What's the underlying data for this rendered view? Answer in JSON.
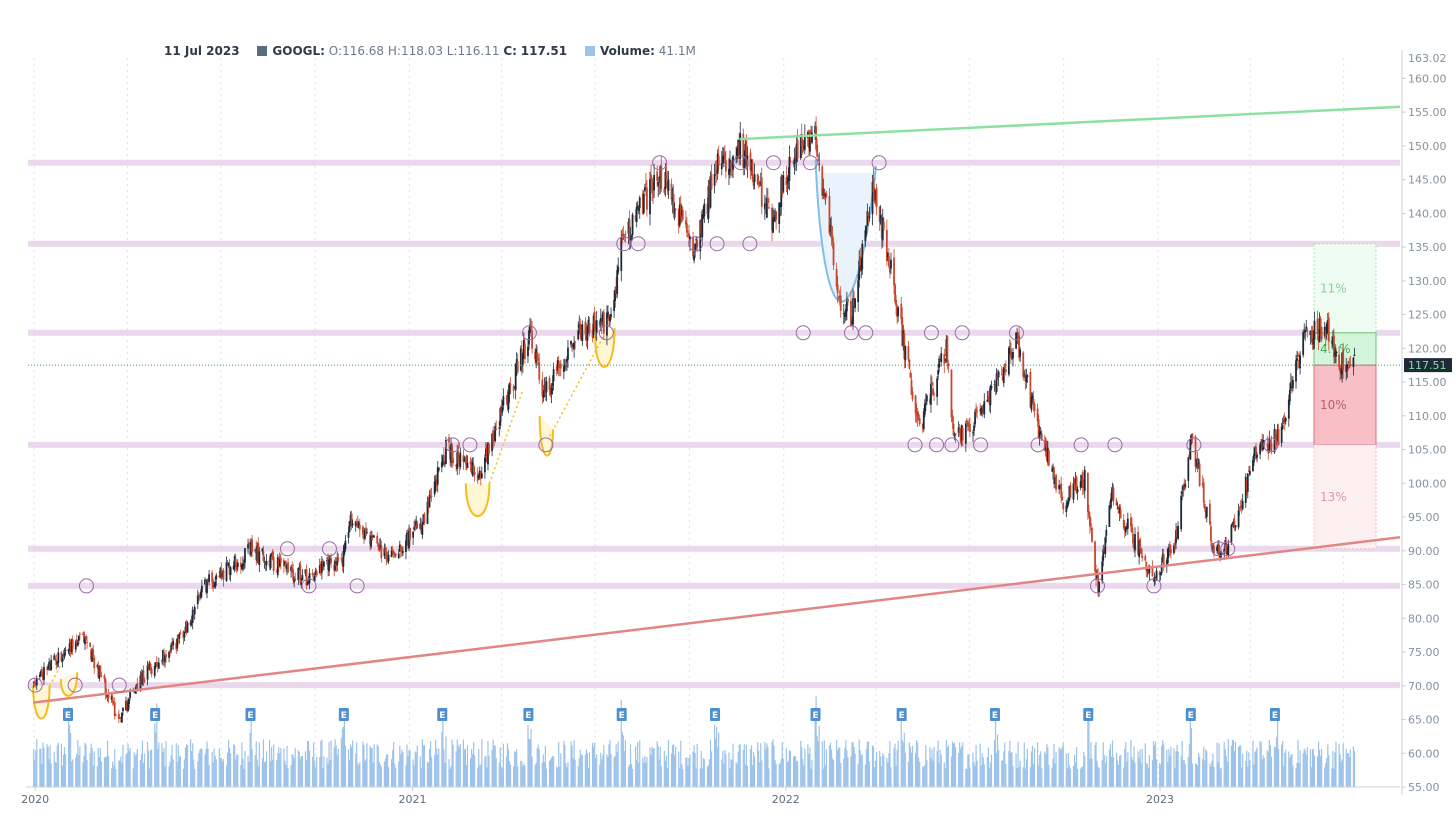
{
  "header": {
    "date": "11 Jul 2023",
    "symbol_label": "GOOGL:",
    "o_label": "O:",
    "o": "116.68",
    "h_label": "H:",
    "h": "118.03",
    "l_label": "L:",
    "l": "116.11",
    "c_label": "C:",
    "c": "117.51",
    "volume_label": "Volume:",
    "volume": "41.1M",
    "symbol_color": "#5a6a80",
    "volume_color": "#9ec3ea"
  },
  "chart_data": {
    "type": "candlestick",
    "symbol": "GOOGL",
    "x_ticks": [
      "2020",
      "2021",
      "2022",
      "2023"
    ],
    "y_ticks": [
      55,
      60,
      65,
      70,
      75,
      80,
      85,
      90,
      95,
      100,
      105,
      110,
      115,
      120,
      125,
      130,
      135,
      140,
      145,
      150,
      155,
      160
    ],
    "y_top_label": "163.02",
    "ylim": [
      55,
      163.02
    ],
    "last_price": 117.51,
    "last_price_label": "117.51",
    "price_path": [
      [
        "2019-12-31",
        70.5
      ],
      [
        "2020-02-05",
        76
      ],
      [
        "2020-02-19",
        77
      ],
      [
        "2020-03-23",
        65
      ],
      [
        "2020-04-08",
        70
      ],
      [
        "2020-05-27",
        78
      ],
      [
        "2020-06-15",
        85
      ],
      [
        "2020-07-30",
        90
      ],
      [
        "2020-09-21",
        86
      ],
      [
        "2020-10-28",
        89
      ],
      [
        "2020-11-05",
        95
      ],
      [
        "2020-12-09",
        89
      ],
      [
        "2021-01-14",
        94
      ],
      [
        "2021-02-05",
        105
      ],
      [
        "2021-03-08",
        101
      ],
      [
        "2021-04-06",
        113
      ],
      [
        "2021-04-28",
        122
      ],
      [
        "2021-05-12",
        113
      ],
      [
        "2021-06-11",
        122
      ],
      [
        "2021-07-15",
        124
      ],
      [
        "2021-07-27",
        136
      ],
      [
        "2021-09-01",
        146
      ],
      [
        "2021-10-04",
        135
      ],
      [
        "2021-10-28",
        147
      ],
      [
        "2021-11-19",
        150
      ],
      [
        "2021-12-20",
        139
      ],
      [
        "2022-01-10",
        149
      ],
      [
        "2022-02-01",
        151
      ],
      [
        "2022-02-24",
        127
      ],
      [
        "2022-03-08",
        125
      ],
      [
        "2022-03-29",
        144
      ],
      [
        "2022-04-13",
        133
      ],
      [
        "2022-05-12",
        108
      ],
      [
        "2022-06-08",
        120
      ],
      [
        "2022-06-16",
        106
      ],
      [
        "2022-07-15",
        111
      ],
      [
        "2022-08-16",
        121
      ],
      [
        "2022-09-06",
        108
      ],
      [
        "2022-09-30",
        97
      ],
      [
        "2022-10-21",
        101
      ],
      [
        "2022-11-03",
        84
      ],
      [
        "2022-11-16",
        98
      ],
      [
        "2022-12-28",
        86
      ],
      [
        "2023-01-18",
        92
      ],
      [
        "2023-02-02",
        107
      ],
      [
        "2023-02-24",
        90
      ],
      [
        "2023-03-10",
        91
      ],
      [
        "2023-04-04",
        104
      ],
      [
        "2023-04-28",
        107
      ],
      [
        "2023-05-24",
        122
      ],
      [
        "2023-06-14",
        123
      ],
      [
        "2023-06-27",
        118
      ],
      [
        "2023-07-11",
        117.51
      ]
    ],
    "volume_series": {
      "name": "Volume",
      "last": "41.1M"
    },
    "earnings_markers": {
      "label": "E",
      "dates": [
        "2020-02-03",
        "2020-04-28",
        "2020-07-30",
        "2020-10-29",
        "2021-02-02",
        "2021-04-27",
        "2021-07-27",
        "2021-10-26",
        "2022-02-01",
        "2022-04-26",
        "2022-07-26",
        "2022-10-25",
        "2023-02-02",
        "2023-04-25"
      ]
    },
    "support_resistance_levels": [
      147.5,
      135.5,
      122.3,
      105.7,
      90.3,
      84.8,
      70.1
    ],
    "trendlines": [
      {
        "color": "#8ee0a1",
        "from": [
          "2021-11-19",
          151
        ],
        "to": [
          "2023-08-25",
          155.8
        ]
      },
      {
        "color": "#e38585",
        "from": [
          "2019-12-31",
          67.5
        ],
        "to": [
          "2023-08-25",
          92
        ]
      }
    ],
    "pattern_markers": {
      "circles_yellow_cups": [
        [
          [
            "2019-12-31",
            70
          ],
          [
            "2020-01-08",
            65
          ],
          [
            "2020-01-16",
            70
          ]
        ],
        [
          [
            "2020-01-27",
            71
          ],
          [
            "2020-02-05",
            69
          ],
          [
            "2020-02-12",
            72
          ]
        ],
        [
          [
            "2021-02-25",
            100
          ],
          [
            "2021-03-10",
            95
          ],
          [
            "2021-03-20",
            100
          ]
        ],
        [
          [
            "2021-05-08",
            110
          ],
          [
            "2021-05-14",
            104
          ],
          [
            "2021-05-21",
            108
          ]
        ],
        [
          [
            "2021-07-01",
            122
          ],
          [
            "2021-07-12",
            117
          ],
          [
            "2021-07-20",
            123
          ]
        ]
      ],
      "blue_cup": {
        "start": [
          "2022-02-01",
          148
        ],
        "bottom": [
          "2022-03-09",
          123
        ],
        "end": [
          "2022-04-01",
          147
        ],
        "fill": "#eaf3fc",
        "stroke": "#7fbfe8"
      }
    },
    "projection_boxes": [
      {
        "label": "11%",
        "top": 135.5,
        "bottom": 122.3,
        "fill": "#eefcf1",
        "stroke": "#a7e0b3",
        "text_color": "#8ccf9b",
        "dashed": true
      },
      {
        "label": "4.1%",
        "top": 122.3,
        "bottom": 117.51,
        "fill": "#d3f5da",
        "stroke": "#67c77d",
        "text_color": "#4aa864",
        "dashed": false
      },
      {
        "label": "10%",
        "top": 117.51,
        "bottom": 105.7,
        "fill": "#f8bfc7",
        "stroke": "#d9707f",
        "text_color": "#b7606d",
        "dashed": false
      },
      {
        "label": "13%",
        "top": 105.7,
        "bottom": 90.3,
        "fill": "#fdf0f2",
        "stroke": "#efb7c0",
        "text_color": "#d99aa5",
        "dashed": true
      }
    ]
  }
}
